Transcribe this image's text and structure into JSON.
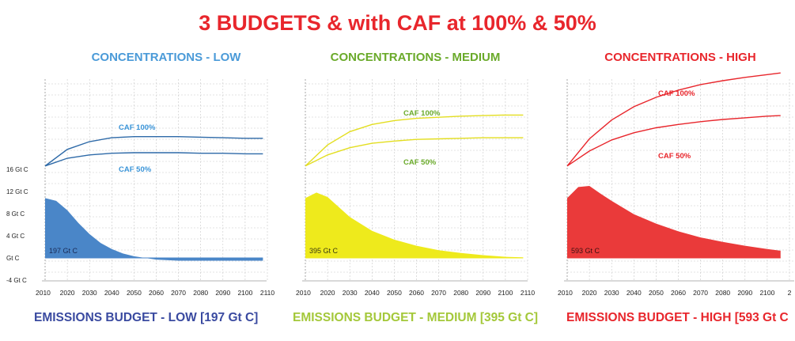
{
  "title": "3 BUDGETS & with CAF at 100% & 50%",
  "colors": {
    "title": "#e8262c",
    "low": "#4a86c8",
    "low_line": "#2e6aa8",
    "medium": "#eeea1c",
    "medium_text": "#6aaa2a",
    "high": "#ea3a3a",
    "footer_low": "#3a4aa0",
    "footer_medium": "#a4c83a",
    "footer_high": "#e8262c"
  },
  "y_axis": {
    "tick_labels": [
      "16 Gt C",
      "12 Gt C",
      "8 Gt C",
      "4 Gt C",
      "Gt C",
      "-4 Gt C"
    ],
    "tick_values": [
      16,
      12,
      8,
      4,
      0,
      -4
    ]
  },
  "chart_data": [
    {
      "type": "area",
      "title": "CONCENTRATIONS - LOW",
      "footer": "EMISSIONS BUDGET -  LOW  [197 Gt C]",
      "area_label": "197 Gt C",
      "x_tick_labels": [
        "2010",
        "2020",
        "2030",
        "2040",
        "2050",
        "2060",
        "2070",
        "2080",
        "2090",
        "2100",
        "2110"
      ],
      "x": [
        2010,
        2015,
        2020,
        2025,
        2030,
        2035,
        2040,
        2045,
        2050,
        2055,
        2060,
        2070,
        2080,
        2090,
        2100,
        2108
      ],
      "emissions": [
        10.8,
        10.3,
        8.6,
        6.3,
        4.3,
        2.7,
        1.6,
        0.8,
        0.3,
        0.0,
        -0.3,
        -0.5,
        -0.5,
        -0.5,
        -0.5,
        -0.5
      ],
      "series": [
        {
          "name": "CAF 100%",
          "x": [
            2010,
            2020,
            2030,
            2040,
            2050,
            2060,
            2070,
            2080,
            2090,
            2100,
            2108
          ],
          "values": [
            16.6,
            19.6,
            21.0,
            21.7,
            21.9,
            21.9,
            21.9,
            21.8,
            21.7,
            21.6,
            21.6
          ]
        },
        {
          "name": "CAF 50%",
          "x": [
            2010,
            2020,
            2030,
            2040,
            2050,
            2060,
            2070,
            2080,
            2090,
            2100,
            2108
          ],
          "values": [
            16.6,
            18.0,
            18.6,
            18.9,
            19.0,
            19.0,
            19.0,
            18.9,
            18.9,
            18.8,
            18.8
          ]
        }
      ]
    },
    {
      "type": "area",
      "title": "CONCENTRATIONS - MEDIUM",
      "footer": "EMISSIONS BUDGET - MEDIUM [395 Gt C]",
      "area_label": "395 Gt C",
      "x_tick_labels": [
        "2010",
        "2020",
        "2030",
        "2040",
        "2050",
        "2060",
        "2070",
        "2080",
        "2090",
        "2100",
        "2110"
      ],
      "x": [
        2010,
        2015,
        2020,
        2025,
        2030,
        2040,
        2050,
        2060,
        2070,
        2080,
        2090,
        2100,
        2108
      ],
      "emissions": [
        10.8,
        11.8,
        11.0,
        9.2,
        7.4,
        4.9,
        3.3,
        2.2,
        1.4,
        0.9,
        0.5,
        0.2,
        0.1
      ],
      "series": [
        {
          "name": "CAF 100%",
          "x": [
            2010,
            2020,
            2030,
            2040,
            2050,
            2060,
            2070,
            2080,
            2090,
            2100,
            2108
          ],
          "values": [
            16.6,
            20.4,
            22.8,
            24.1,
            24.8,
            25.2,
            25.4,
            25.6,
            25.7,
            25.8,
            25.8
          ]
        },
        {
          "name": "CAF 50%",
          "x": [
            2010,
            2020,
            2030,
            2040,
            2050,
            2060,
            2070,
            2080,
            2090,
            2100,
            2108
          ],
          "values": [
            16.6,
            18.6,
            19.9,
            20.7,
            21.1,
            21.4,
            21.5,
            21.6,
            21.7,
            21.7,
            21.7
          ]
        }
      ]
    },
    {
      "type": "area",
      "title": "CONCENTRATIONS - HIGH",
      "footer": "EMISSIONS BUDGET - HIGH [593 Gt C",
      "area_label": "593 Gt C",
      "x_tick_labels": [
        "2010",
        "2020",
        "2030",
        "2040",
        "2050",
        "2060",
        "2070",
        "2080",
        "2090",
        "2100",
        "2"
      ],
      "x": [
        2010,
        2015,
        2020,
        2025,
        2030,
        2040,
        2050,
        2060,
        2070,
        2080,
        2090,
        2100,
        2106
      ],
      "emissions": [
        10.8,
        12.8,
        13.0,
        11.6,
        10.3,
        7.9,
        6.2,
        4.8,
        3.7,
        2.9,
        2.2,
        1.6,
        1.3
      ],
      "series": [
        {
          "name": "CAF 100%",
          "x": [
            2010,
            2020,
            2030,
            2040,
            2050,
            2060,
            2070,
            2080,
            2090,
            2100,
            2106
          ],
          "values": [
            16.6,
            21.5,
            24.9,
            27.3,
            29.0,
            30.3,
            31.3,
            32.0,
            32.6,
            33.1,
            33.4
          ]
        },
        {
          "name": "CAF 50%",
          "x": [
            2010,
            2020,
            2030,
            2040,
            2050,
            2060,
            2070,
            2080,
            2090,
            2100,
            2106
          ],
          "values": [
            16.6,
            19.3,
            21.3,
            22.6,
            23.5,
            24.1,
            24.6,
            25.0,
            25.3,
            25.6,
            25.7
          ]
        }
      ]
    }
  ]
}
